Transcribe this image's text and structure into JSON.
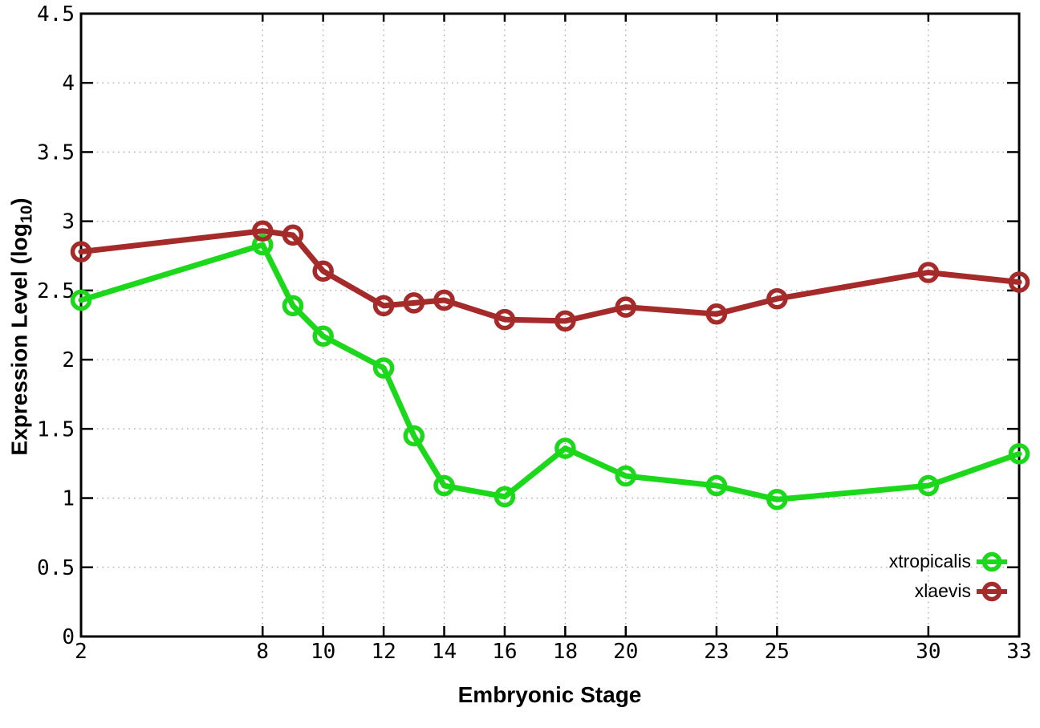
{
  "chart_data": {
    "type": "line",
    "title": "",
    "xlabel": "Embryonic Stage",
    "ylabel": "Expression Level (log10)",
    "ylabel_parts": {
      "prefix": "Expression Level (log",
      "sub": "10",
      "suffix": ")"
    },
    "xlim": [
      2,
      33
    ],
    "ylim": [
      0,
      4.5
    ],
    "xticks": [
      2,
      8,
      10,
      12,
      14,
      16,
      18,
      20,
      23,
      25,
      30,
      33
    ],
    "yticks": [
      0,
      0.5,
      1,
      1.5,
      2,
      2.5,
      3,
      3.5,
      4,
      4.5
    ],
    "grid": true,
    "grid_style": "dotted",
    "legend_position": "bottom-right",
    "x": [
      2,
      8,
      9,
      10,
      12,
      13,
      14,
      16,
      18,
      20,
      23,
      25,
      30,
      33
    ],
    "series": [
      {
        "name": "xtropicalis",
        "color": "#1bd81b",
        "values": [
          2.43,
          2.83,
          2.39,
          2.17,
          1.94,
          1.45,
          1.09,
          1.01,
          1.36,
          1.16,
          1.09,
          0.99,
          1.09,
          1.32
        ]
      },
      {
        "name": "xlaevis",
        "color": "#a52a2a",
        "values": [
          2.78,
          2.93,
          2.9,
          2.64,
          2.39,
          2.41,
          2.43,
          2.29,
          2.28,
          2.38,
          2.33,
          2.44,
          2.63,
          2.56
        ]
      }
    ]
  }
}
